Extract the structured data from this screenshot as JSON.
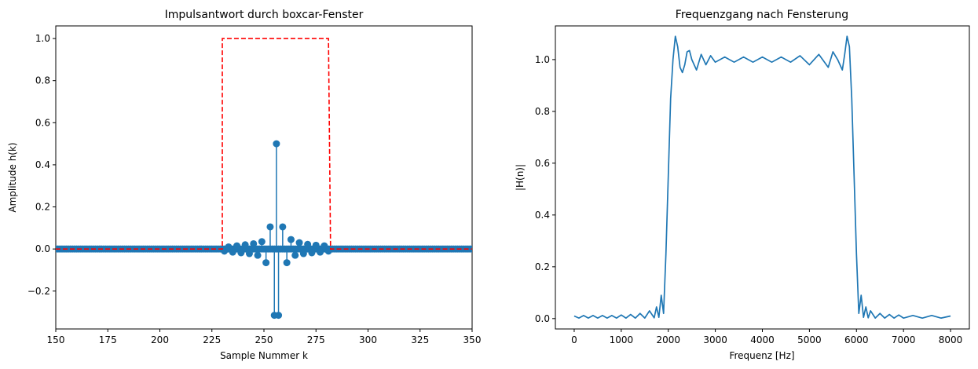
{
  "chart_data": [
    {
      "type": "stem",
      "title": "Impulsantwort durch boxcar-Fenster",
      "xlabel": "Sample Nummer k",
      "ylabel": "Amplitude h(k)",
      "xlim": [
        150,
        350
      ],
      "ylim": [
        -0.38,
        1.06
      ],
      "xticks": [
        "150",
        "175",
        "200",
        "225",
        "250",
        "275",
        "300",
        "325",
        "350"
      ],
      "yticks": [
        "−0.2",
        "0.0",
        "0.2",
        "0.4",
        "0.6",
        "0.8",
        "1.0"
      ],
      "grid": false,
      "series": [
        {
          "kind": "stem",
          "color": "#1f77b4",
          "points": [
            [
              231,
              -0.01
            ],
            [
              233,
              0.01
            ],
            [
              235,
              -0.015
            ],
            [
              237,
              0.015
            ],
            [
              239,
              -0.018
            ],
            [
              241,
              0.02
            ],
            [
              243,
              -0.022
            ],
            [
              245,
              0.025
            ],
            [
              247,
              -0.03
            ],
            [
              249,
              0.035
            ],
            [
              251,
              -0.065
            ],
            [
              253,
              0.105
            ],
            [
              255,
              -0.315
            ],
            [
              256,
              0.5
            ],
            [
              257,
              -0.315
            ],
            [
              259,
              0.105
            ],
            [
              261,
              -0.065
            ],
            [
              263,
              0.045
            ],
            [
              265,
              -0.03
            ],
            [
              267,
              0.03
            ],
            [
              269,
              -0.022
            ],
            [
              271,
              0.022
            ],
            [
              273,
              -0.018
            ],
            [
              275,
              0.018
            ],
            [
              277,
              -0.015
            ],
            [
              279,
              0.015
            ],
            [
              281,
              -0.01
            ]
          ]
        },
        {
          "kind": "line-dashed",
          "color": "#ff0000",
          "points": [
            [
              150,
              0
            ],
            [
              230,
              0
            ],
            [
              230,
              1
            ],
            [
              281,
              1
            ],
            [
              282,
              0
            ],
            [
              350,
              0
            ]
          ]
        }
      ]
    },
    {
      "type": "line",
      "title": "Frequenzgang nach Fensterung",
      "xlabel": "Frequenz [Hz]",
      "ylabel": "|H(n)|",
      "xlim": [
        -400,
        8400
      ],
      "ylim": [
        -0.04,
        1.13
      ],
      "xticks": [
        "0",
        "1000",
        "2000",
        "3000",
        "4000",
        "5000",
        "6000",
        "7000",
        "8000"
      ],
      "yticks": [
        "0.0",
        "0.2",
        "0.4",
        "0.6",
        "0.8",
        "1.0"
      ],
      "grid": false,
      "series": [
        {
          "color": "#1f77b4",
          "x": [
            0,
            100,
            200,
            300,
            400,
            500,
            600,
            700,
            800,
            900,
            1000,
            1100,
            1200,
            1300,
            1400,
            1500,
            1600,
            1700,
            1750,
            1800,
            1850,
            1900,
            1950,
            2000,
            2050,
            2100,
            2150,
            2200,
            2250,
            2300,
            2350,
            2400,
            2450,
            2500,
            2600,
            2700,
            2800,
            2900,
            3000,
            3200,
            3400,
            3600,
            3800,
            4000,
            4200,
            4400,
            4600,
            4800,
            5000,
            5200,
            5400,
            5500,
            5600,
            5650,
            5700,
            5750,
            5800,
            5850,
            5900,
            5950,
            6000,
            6050,
            6100,
            6150,
            6200,
            6250,
            6300,
            6400,
            6500,
            6600,
            6700,
            6800,
            6900,
            7000,
            7200,
            7400,
            7600,
            7800,
            8000
          ],
          "y": [
            0.01,
            0.002,
            0.012,
            0.002,
            0.012,
            0.002,
            0.012,
            0.002,
            0.012,
            0.002,
            0.014,
            0.002,
            0.016,
            0.002,
            0.02,
            0.002,
            0.03,
            0.003,
            0.045,
            0.005,
            0.09,
            0.02,
            0.25,
            0.55,
            0.85,
            1.0,
            1.09,
            1.05,
            0.97,
            0.95,
            0.98,
            1.03,
            1.035,
            1.0,
            0.96,
            1.02,
            0.98,
            1.015,
            0.99,
            1.01,
            0.99,
            1.01,
            0.99,
            1.01,
            0.99,
            1.01,
            0.99,
            1.015,
            0.98,
            1.02,
            0.97,
            1.03,
            1.0,
            0.98,
            0.96,
            1.02,
            1.09,
            1.05,
            0.85,
            0.55,
            0.25,
            0.02,
            0.09,
            0.005,
            0.045,
            0.003,
            0.03,
            0.002,
            0.02,
            0.002,
            0.016,
            0.002,
            0.014,
            0.002,
            0.012,
            0.002,
            0.012,
            0.002,
            0.01
          ]
        }
      ]
    }
  ]
}
